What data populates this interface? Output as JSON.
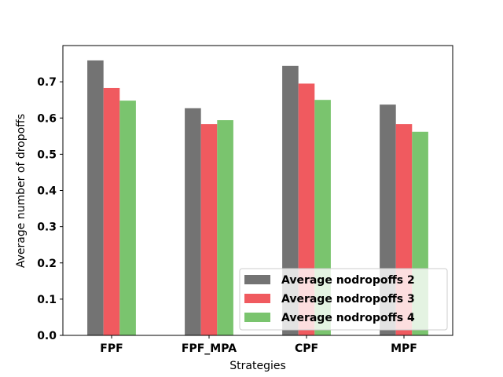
{
  "chart_data": {
    "type": "bar",
    "title": "",
    "xlabel": "Strategies",
    "ylabel": "Average number of dropoffs",
    "categories": [
      "FPF",
      "FPF_MPA",
      "CPF",
      "MPF"
    ],
    "series": [
      {
        "name": "Average nodropoffs 2",
        "color": "#737373",
        "values": [
          0.759,
          0.627,
          0.744,
          0.637
        ]
      },
      {
        "name": "Average nodropoffs 3",
        "color": "#f05a5f",
        "values": [
          0.683,
          0.583,
          0.695,
          0.583
        ]
      },
      {
        "name": "Average nodropoffs 4",
        "color": "#7ac46e",
        "values": [
          0.648,
          0.594,
          0.65,
          0.562
        ]
      }
    ],
    "ylim": [
      0,
      0.8
    ],
    "yticks": [
      "0.0",
      "0.1",
      "0.2",
      "0.3",
      "0.4",
      "0.5",
      "0.6",
      "0.7"
    ],
    "grid": false,
    "legend_position": "bottom-right"
  }
}
